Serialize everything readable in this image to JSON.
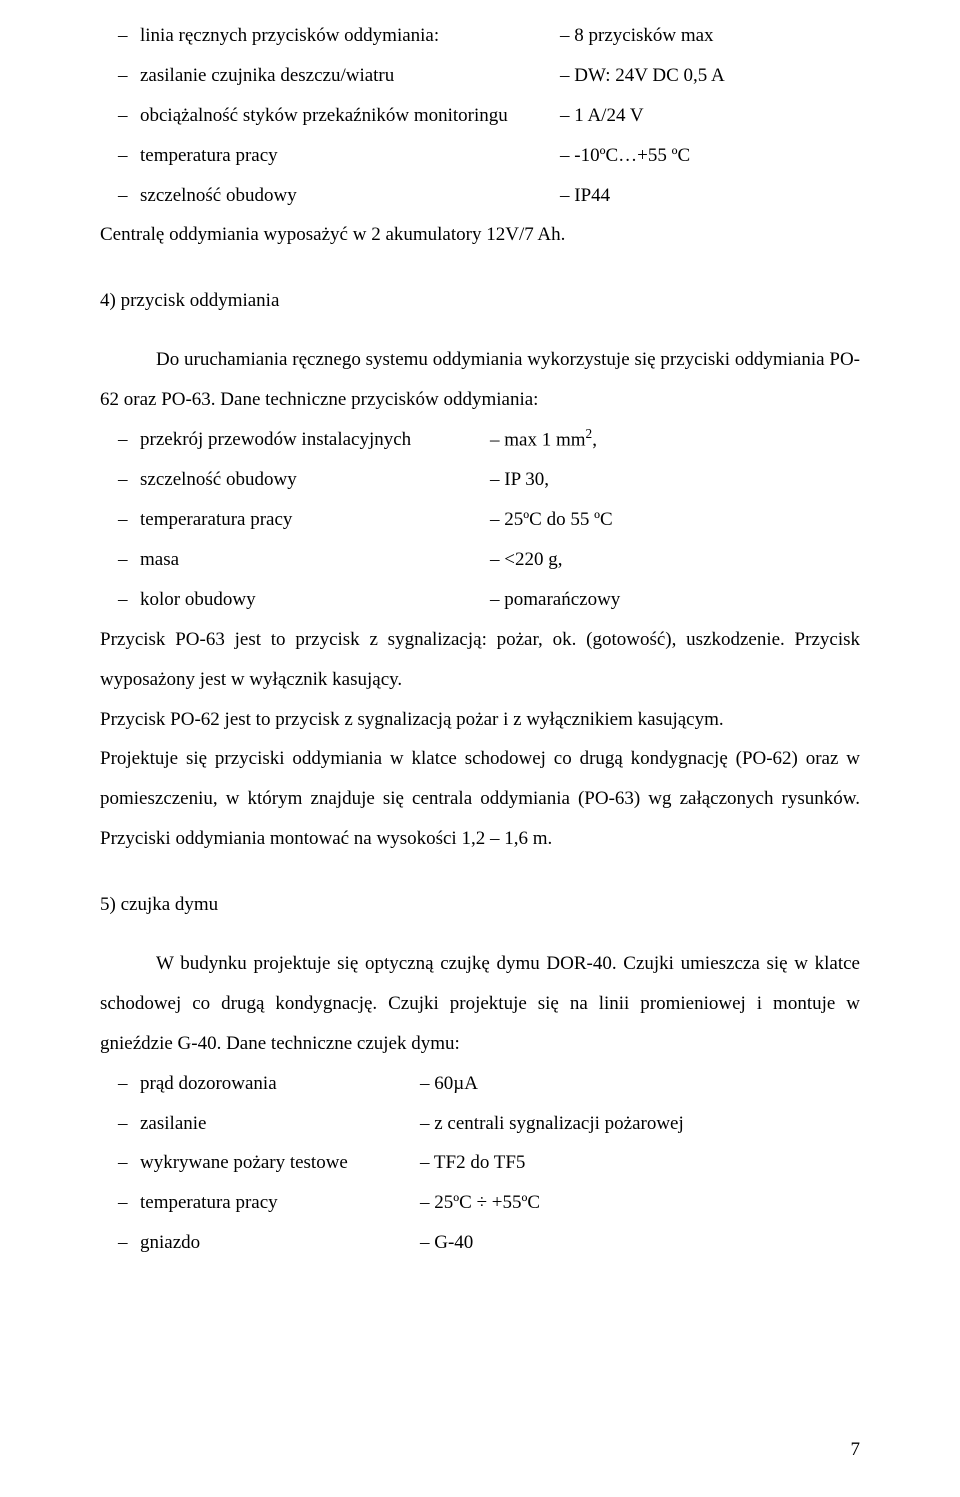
{
  "list1": [
    {
      "label": "linia ręcznych przycisków oddymiania:",
      "value": "– 8 przycisków max"
    },
    {
      "label": "zasilanie czujnika deszczu/wiatru",
      "value": "– DW: 24V DC 0,5 A"
    },
    {
      "label": "obciążalność styków przekaźników monitoringu",
      "value": "– 1 A/24 V"
    },
    {
      "label": "temperatura pracy",
      "value": "– -10ºC…+55 ºC"
    },
    {
      "label": "szczelność obudowy",
      "value": "– IP44"
    }
  ],
  "after_list1": "Centralę oddymiania wyposażyć w 2 akumulatory 12V/7 Ah.",
  "sec4": {
    "heading": "4)  przycisk oddymiania",
    "intro": "Do uruchamiania ręcznego systemu oddymiania wykorzystuje się przyciski oddymiania PO-62 oraz PO-63. Dane techniczne przycisków oddymiania:"
  },
  "list2": [
    {
      "label": "przekrój przewodów instalacyjnych",
      "value_prefix": "– max 1 mm",
      "sup": "2",
      "value_suffix": ","
    },
    {
      "label": "szczelność obudowy",
      "value": "– IP 30,"
    },
    {
      "label": "temperaratura pracy",
      "value": "– 25ºC do 55 ºC"
    },
    {
      "label": "masa",
      "value": "– <220 g,"
    },
    {
      "label": "kolor obudowy",
      "value": "– pomarańczowy"
    }
  ],
  "sec4_para": "Przycisk PO-63 jest to przycisk z sygnalizacją: pożar, ok. (gotowość), uszkodzenie. Przycisk wyposażony jest w wyłącznik kasujący.",
  "sec4_p2": "Przycisk PO-62 jest to przycisk z sygnalizacją pożar i  z wyłącznikiem kasującym.",
  "sec4_p3": "Projektuje się przyciski oddymiania w klatce schodowej co drugą kondygnację (PO-62) oraz w pomieszczeniu, w którym znajduje się centrala oddymiania (PO-63) wg załączonych rysunków. Przyciski oddymiania montować na wysokości 1,2 – 1,6 m.",
  "sec5": {
    "heading": "5)  czujka dymu",
    "intro": "W budynku projektuje się optyczną czujkę dymu DOR-40. Czujki umieszcza się w klatce schodowej co drugą kondygnację. Czujki projektuje się na linii promieniowej i montuje w gnieździe G-40. Dane techniczne czujek dymu:"
  },
  "list3": [
    {
      "label": "prąd dozorowania",
      "value": "– 60µA"
    },
    {
      "label": "zasilanie",
      "value": "– z centrali sygnalizacji pożarowej"
    },
    {
      "label": "wykrywane pożary testowe",
      "value": "– TF2 do TF5"
    },
    {
      "label": "temperatura pracy",
      "value": "– 25ºC ÷ +55ºC"
    },
    {
      "label": "gniazdo",
      "value": "– G-40"
    }
  ],
  "dash": "–",
  "page_number": "7"
}
